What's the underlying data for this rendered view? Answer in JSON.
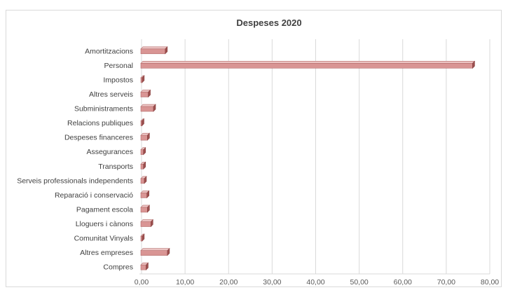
{
  "chart_data": {
    "type": "bar",
    "orientation": "horizontal",
    "title": "Despeses 2020",
    "xlabel": "",
    "ylabel": "",
    "xlim": [
      0,
      80
    ],
    "x_ticks": [
      "0,00",
      "10,00",
      "20,00",
      "30,00",
      "40,00",
      "50,00",
      "60,00",
      "70,00",
      "80,00"
    ],
    "x_tick_values": [
      0,
      10,
      20,
      30,
      40,
      50,
      60,
      70,
      80
    ],
    "grid": true,
    "legend": "none",
    "style": "3d",
    "bar_color": "#d99594",
    "categories": [
      "Amortitzacions",
      "Personal",
      "Impostos",
      "Altres serveis",
      "Subministraments",
      "Relacions publiques",
      "Despeses financeres",
      "Assegurances",
      "Transports",
      "Serveis professionals independents",
      "Reparació i conservació",
      "Pagament escola",
      "Lloguers i cànons",
      "Comunitat Vinyals",
      "Altres empreses",
      "Compres"
    ],
    "values": [
      5.6,
      76.2,
      0.3,
      1.7,
      2.9,
      0.2,
      1.5,
      0.6,
      0.6,
      0.8,
      1.4,
      1.5,
      2.3,
      0.3,
      6.1,
      1.2
    ]
  }
}
